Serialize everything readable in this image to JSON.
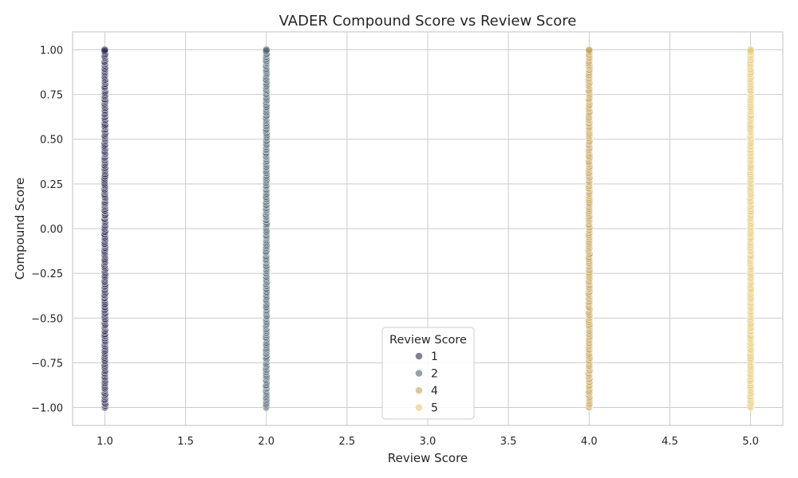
{
  "chart_data": {
    "type": "scatter",
    "title": "VADER Compound Score vs Review Score",
    "xlabel": "Review Score",
    "ylabel": "Compound Score",
    "xlim": [
      0.8,
      5.2
    ],
    "ylim": [
      -1.1,
      1.1
    ],
    "xticks": [
      "1.0",
      "1.5",
      "2.0",
      "2.5",
      "3.0",
      "3.5",
      "4.0",
      "4.5",
      "5.0"
    ],
    "yticks": [
      "−1.00",
      "−0.75",
      "−0.50",
      "−0.25",
      "0.00",
      "0.25",
      "0.50",
      "0.75",
      "1.00"
    ],
    "grid": true,
    "legend": {
      "title": "Review Score",
      "placement": "lower-center"
    },
    "series": [
      {
        "name": "1",
        "x": 1,
        "y_range": [
          -1.0,
          1.0
        ],
        "color": "#2e2a52"
      },
      {
        "name": "2",
        "x": 2,
        "y_range": [
          -1.0,
          1.0
        ],
        "color": "#4d6670"
      },
      {
        "name": "4",
        "x": 4,
        "y_range": [
          -1.0,
          1.0
        ],
        "color": "#c9a258"
      },
      {
        "name": "5",
        "x": 5,
        "y_range": [
          -1.0,
          1.0
        ],
        "color": "#e8c873"
      }
    ]
  }
}
